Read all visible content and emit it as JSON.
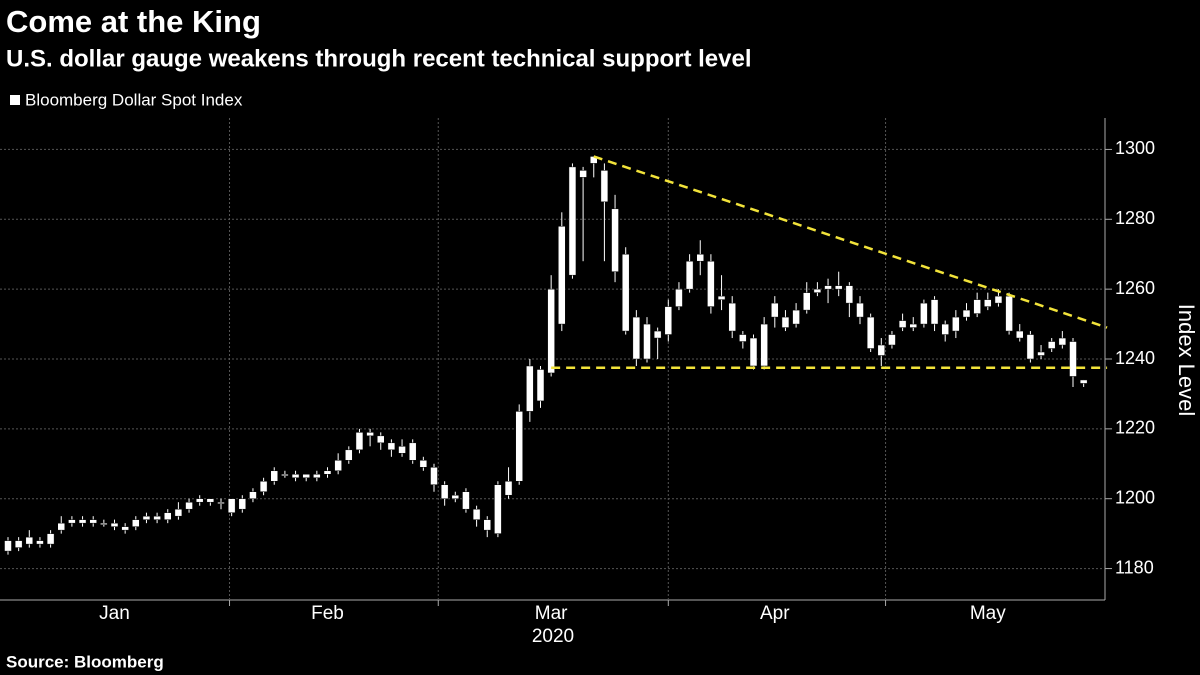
{
  "chart_data": {
    "type": "candlestick",
    "title": "Come at the King",
    "subtitle": "U.S. dollar gauge weakens through recent technical support level",
    "source": "Source: Bloomberg",
    "y_label": "Index Level",
    "year_label": "2020",
    "categories": [
      null,
      null,
      null,
      null,
      null,
      null,
      null,
      null,
      null,
      null,
      "Jan",
      null,
      null,
      null,
      null,
      null,
      null,
      null,
      null,
      null,
      null,
      null,
      null,
      null,
      null,
      null,
      null,
      null,
      null,
      null,
      "Feb",
      null,
      null,
      null,
      null,
      null,
      null,
      null,
      null,
      null,
      null,
      null,
      null,
      null,
      null,
      null,
      null,
      null,
      null,
      null,
      null,
      "Mar",
      null,
      null,
      null,
      null,
      null,
      null,
      null,
      null,
      null,
      null,
      null,
      null,
      null,
      null,
      null,
      null,
      null,
      null,
      null,
      null,
      "Apr",
      null,
      null,
      null,
      null,
      null,
      null,
      null,
      null,
      null,
      null,
      null,
      null,
      null,
      null,
      null,
      null,
      null,
      null,
      null,
      "May",
      null,
      null,
      null,
      null,
      null,
      null,
      null,
      null,
      null
    ],
    "series": [
      {
        "name": "Bloomberg Dollar Spot Index",
        "color": "#ffffff",
        "open": [
          1185,
          1188,
          1187,
          1188,
          1187,
          1191,
          1193,
          1194,
          1193,
          1193,
          1193,
          1192,
          1192,
          1194,
          1195,
          1194,
          1195,
          1197,
          1199,
          1200,
          1199,
          1200,
          1197,
          1200,
          1202,
          1205,
          1207,
          1206,
          1207,
          1206,
          1207,
          1208,
          1211,
          1214,
          1219,
          1218,
          1216,
          1215,
          1216,
          1211,
          1209,
          1204,
          1201,
          1202,
          1197,
          1194,
          1190,
          1201,
          1205,
          1225,
          1228,
          1236,
          1250,
          1264,
          1292,
          1296,
          1294,
          1283,
          1270,
          1252,
          1240,
          1246,
          1247,
          1255,
          1260,
          1268,
          1268,
          1257,
          1256,
          1247,
          1246,
          1238,
          1252,
          1252,
          1250,
          1254,
          1259,
          1260,
          1261,
          1261,
          1256,
          1252,
          1244,
          1244,
          1249,
          1250,
          1250,
          1257,
          1250,
          1248,
          1252,
          1253,
          1255,
          1256,
          1258,
          1248,
          1247,
          1241,
          1243,
          1246,
          1245,
          1233
        ],
        "high": [
          1189,
          1189,
          1191,
          1189,
          1191,
          1195,
          1195,
          1195,
          1195,
          1194,
          1194,
          1193,
          1195,
          1196,
          1196,
          1197,
          1199,
          1200,
          1201,
          1200,
          1200,
          1200,
          1201,
          1203,
          1206,
          1209,
          1208,
          1208,
          1207,
          1208,
          1209,
          1213,
          1215,
          1220,
          1220,
          1219,
          1217,
          1217,
          1217,
          1212,
          1210,
          1205,
          1202,
          1203,
          1198,
          1195,
          1205,
          1209,
          1227,
          1240,
          1238,
          1264,
          1282,
          1296,
          1295,
          1298,
          1296,
          1287,
          1272,
          1254,
          1252,
          1249,
          1257,
          1262,
          1270,
          1274,
          1270,
          1264,
          1258,
          1248,
          1247,
          1252,
          1258,
          1254,
          1256,
          1262,
          1262,
          1263,
          1265,
          1262,
          1258,
          1253,
          1246,
          1248,
          1253,
          1252,
          1257,
          1258,
          1251,
          1254,
          1256,
          1259,
          1259,
          1260,
          1259,
          1250,
          1248,
          1244,
          1246,
          1248,
          1246,
          1234
        ],
        "low": [
          1184,
          1185,
          1186,
          1186,
          1186,
          1190,
          1192,
          1192,
          1192,
          1192,
          1191,
          1190,
          1191,
          1193,
          1193,
          1193,
          1194,
          1196,
          1198,
          1198,
          1197,
          1195,
          1196,
          1199,
          1201,
          1204,
          1206,
          1205,
          1205,
          1205,
          1206,
          1207,
          1210,
          1213,
          1215,
          1214,
          1212,
          1212,
          1210,
          1208,
          1202,
          1198,
          1199,
          1196,
          1192,
          1189,
          1189,
          1200,
          1204,
          1222,
          1226,
          1235,
          1248,
          1263,
          1268,
          1292,
          1268,
          1262,
          1247,
          1238,
          1239,
          1240,
          1245,
          1254,
          1259,
          1264,
          1253,
          1254,
          1246,
          1243,
          1237,
          1237,
          1249,
          1248,
          1249,
          1253,
          1258,
          1256,
          1258,
          1252,
          1250,
          1242,
          1238,
          1243,
          1248,
          1248,
          1249,
          1248,
          1245,
          1246,
          1251,
          1252,
          1254,
          1255,
          1247,
          1245,
          1239,
          1240,
          1242,
          1243,
          1232,
          1232
        ],
        "close": [
          1188,
          1186,
          1189,
          1187,
          1190,
          1193,
          1194,
          1193,
          1194,
          1193,
          1192,
          1191,
          1194,
          1195,
          1194,
          1196,
          1197,
          1199,
          1200,
          1199,
          1199,
          1196,
          1200,
          1202,
          1205,
          1208,
          1207,
          1207,
          1206,
          1207,
          1208,
          1211,
          1214,
          1219,
          1218,
          1216,
          1214,
          1213,
          1211,
          1209,
          1204,
          1200,
          1200,
          1197,
          1194,
          1191,
          1204,
          1205,
          1225,
          1238,
          1237,
          1260,
          1278,
          1295,
          1294,
          1298,
          1285,
          1265,
          1248,
          1240,
          1250,
          1248,
          1255,
          1260,
          1268,
          1270,
          1255,
          1258,
          1248,
          1245,
          1238,
          1250,
          1256,
          1249,
          1254,
          1259,
          1260,
          1261,
          1260,
          1256,
          1252,
          1243,
          1241,
          1247,
          1251,
          1249,
          1256,
          1250,
          1247,
          1252,
          1254,
          1257,
          1257,
          1258,
          1248,
          1246,
          1240,
          1242,
          1245,
          1244,
          1235,
          1234
        ]
      }
    ],
    "trend_lines": [
      {
        "color": "#f2e33a",
        "x": [
          55,
          103.2
        ],
        "values": [
          1298,
          1249
        ]
      },
      {
        "color": "#f2e33a",
        "x": [
          51,
          103.2
        ],
        "values": [
          1237.5,
          1237.5
        ]
      }
    ],
    "ylim": [
      1171,
      1309
    ],
    "yticks": [
      1180,
      1200,
      1220,
      1240,
      1260,
      1280,
      1300
    ],
    "grid": true
  }
}
